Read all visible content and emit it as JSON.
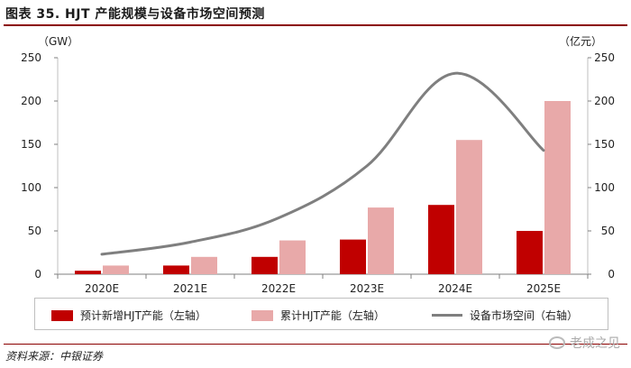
{
  "figure_title": "图表 35. HJT 产能规模与设备市场空间预测",
  "source": "资料来源：中银证券",
  "watermark": "老成之见",
  "colors": {
    "bar_new": "#c00000",
    "bar_cum": "#e8a9a9",
    "line": "#7f7f7f",
    "rule": "#8b0000"
  },
  "chart_data": {
    "type": "bar",
    "categories": [
      "2020E",
      "2021E",
      "2022E",
      "2023E",
      "2024E",
      "2025E"
    ],
    "series": [
      {
        "name": "预计新增HJT产能（左轴）",
        "axis": "left",
        "kind": "bar",
        "values": [
          4,
          10,
          20,
          40,
          80,
          50
        ]
      },
      {
        "name": "累计HJT产能（左轴）",
        "axis": "left",
        "kind": "bar",
        "values": [
          10,
          20,
          39,
          77,
          155,
          200
        ]
      },
      {
        "name": "设备市场空间（右轴）",
        "axis": "right",
        "kind": "line",
        "values": [
          23,
          37,
          65,
          125,
          232,
          143
        ]
      }
    ],
    "left_axis": {
      "unit": "（GW）",
      "ylim": [
        0,
        250
      ],
      "ticks": [
        "0",
        "50",
        "100",
        "150",
        "200",
        "250"
      ]
    },
    "right_axis": {
      "unit": "（亿元）",
      "ylim": [
        0,
        250
      ],
      "ticks": [
        "0",
        "50",
        "100",
        "150",
        "200",
        "250"
      ]
    },
    "grid": false,
    "legend_position": "bottom"
  }
}
